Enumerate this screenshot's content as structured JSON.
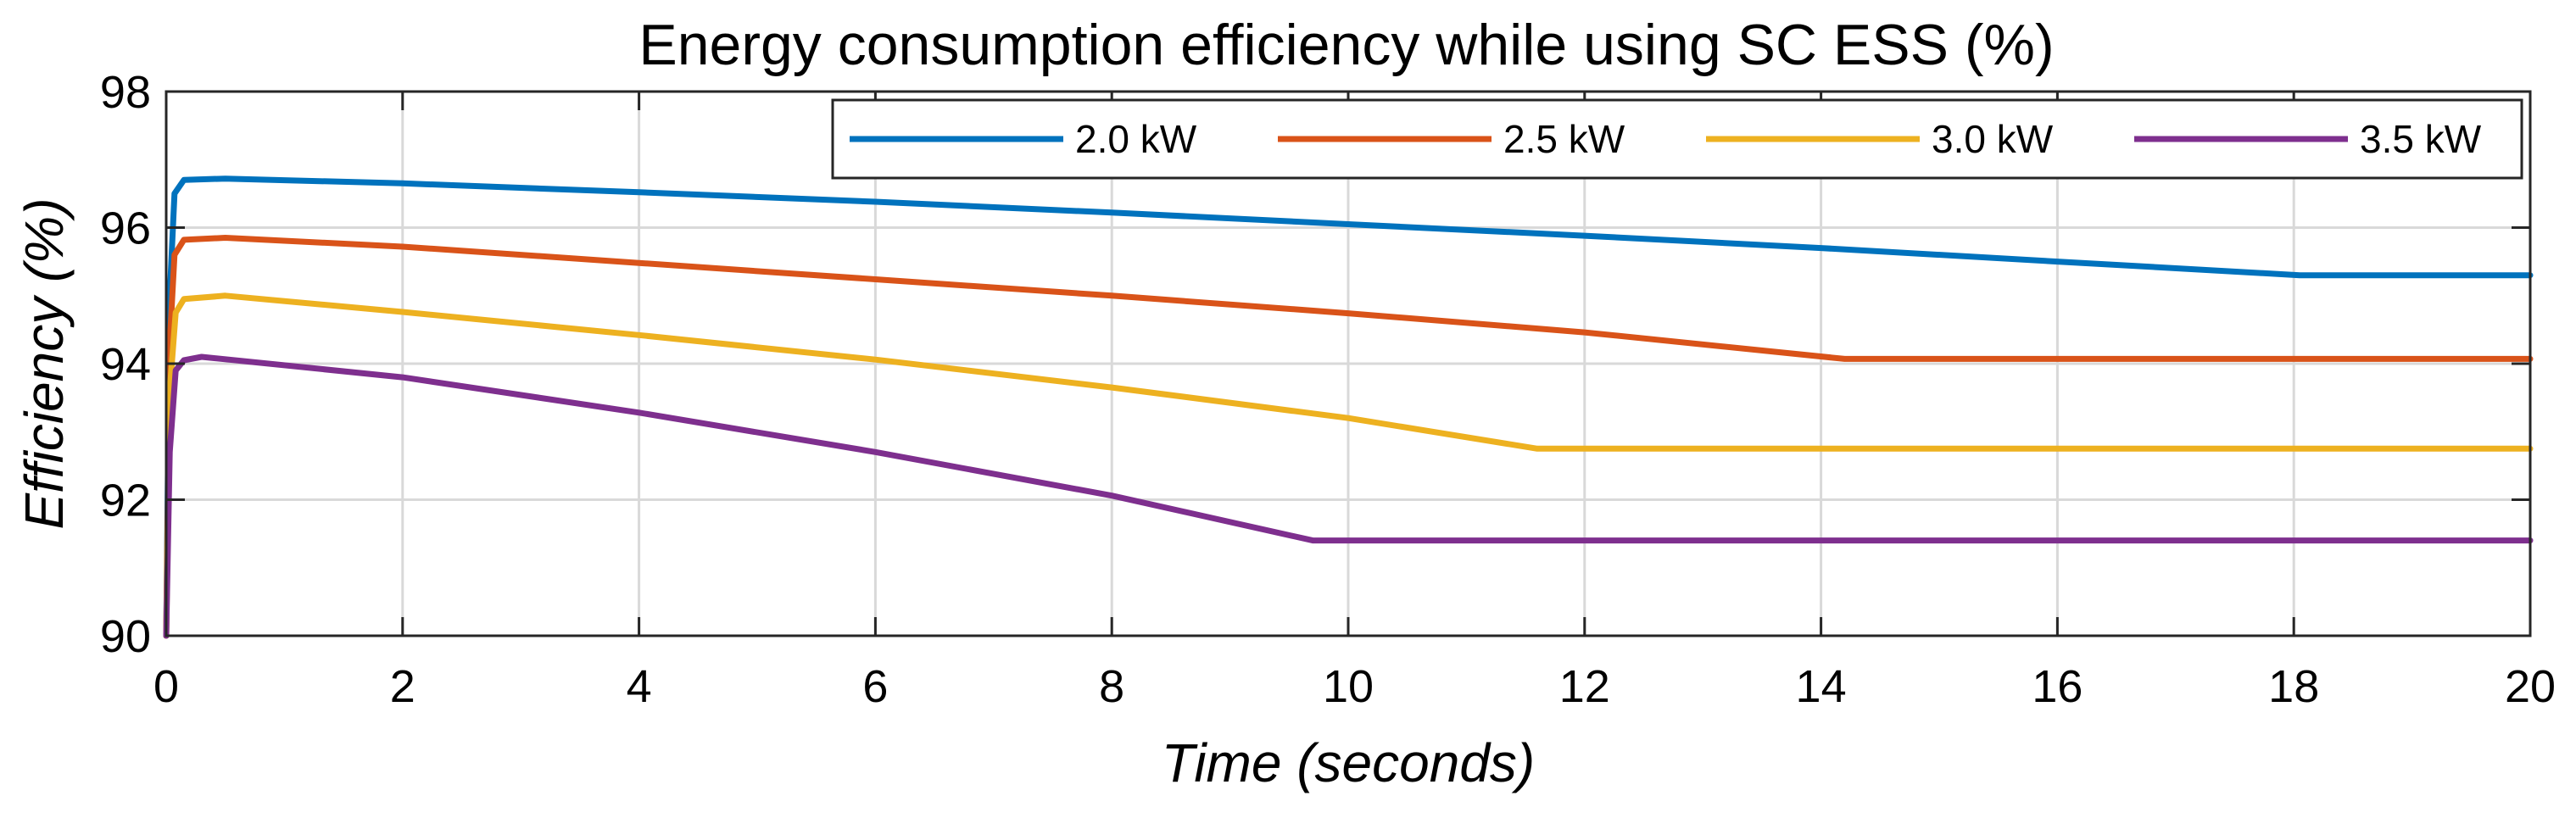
{
  "chart_data": {
    "type": "line",
    "title": "Energy consumption efficiency while using SC ESS (%)",
    "xlabel": "Time (seconds)",
    "ylabel": "Efficiency (%)",
    "xlim": [
      0,
      20
    ],
    "ylim": [
      90,
      98
    ],
    "xticks": [
      0,
      2,
      4,
      6,
      8,
      10,
      12,
      14,
      16,
      18,
      20
    ],
    "yticks": [
      90,
      92,
      94,
      96,
      98
    ],
    "grid": true,
    "legend_position": "top-right",
    "series": [
      {
        "name": "2.0 kW",
        "color": "#0072BD",
        "points": [
          [
            0,
            90
          ],
          [
            0.03,
            95.0
          ],
          [
            0.07,
            96.5
          ],
          [
            0.15,
            96.7
          ],
          [
            0.5,
            96.72
          ],
          [
            2,
            96.65
          ],
          [
            4,
            96.52
          ],
          [
            6,
            96.38
          ],
          [
            8,
            96.22
          ],
          [
            10,
            96.05
          ],
          [
            12,
            95.88
          ],
          [
            14,
            95.7
          ],
          [
            16,
            95.5
          ],
          [
            18.05,
            95.3
          ],
          [
            20,
            95.3
          ]
        ]
      },
      {
        "name": "2.5 kW",
        "color": "#D95319",
        "points": [
          [
            0,
            90
          ],
          [
            0.03,
            94.3
          ],
          [
            0.07,
            95.6
          ],
          [
            0.15,
            95.82
          ],
          [
            0.5,
            95.85
          ],
          [
            2,
            95.72
          ],
          [
            4,
            95.48
          ],
          [
            6,
            95.24
          ],
          [
            8,
            95.0
          ],
          [
            10,
            94.74
          ],
          [
            12,
            94.46
          ],
          [
            14.2,
            94.07
          ],
          [
            20,
            94.07
          ]
        ]
      },
      {
        "name": "3.0 kW",
        "color": "#EDB120",
        "points": [
          [
            0,
            90
          ],
          [
            0.03,
            93.6
          ],
          [
            0.08,
            94.75
          ],
          [
            0.15,
            94.95
          ],
          [
            0.5,
            95.0
          ],
          [
            2,
            94.76
          ],
          [
            4,
            94.42
          ],
          [
            6,
            94.06
          ],
          [
            8,
            93.65
          ],
          [
            10,
            93.2
          ],
          [
            11.6,
            92.75
          ],
          [
            20,
            92.75
          ]
        ]
      },
      {
        "name": "3.5 kW",
        "color": "#7E2F8E",
        "points": [
          [
            0,
            90
          ],
          [
            0.03,
            92.7
          ],
          [
            0.08,
            93.9
          ],
          [
            0.15,
            94.05
          ],
          [
            0.3,
            94.1
          ],
          [
            2,
            93.8
          ],
          [
            4,
            93.28
          ],
          [
            6,
            92.7
          ],
          [
            8,
            92.06
          ],
          [
            9.7,
            91.4
          ],
          [
            20,
            91.4
          ]
        ]
      }
    ]
  }
}
